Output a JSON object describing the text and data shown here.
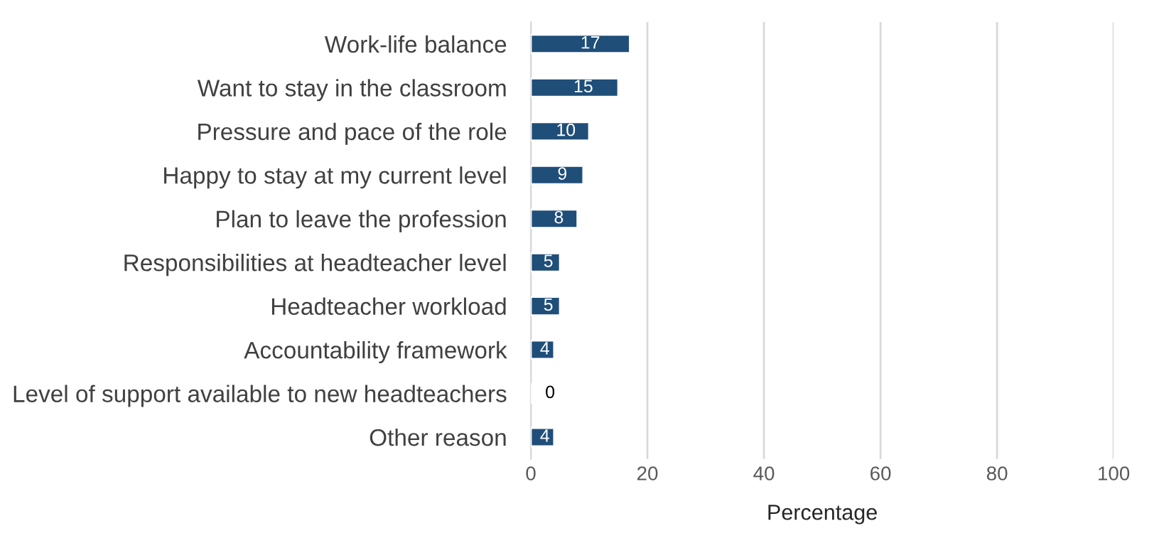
{
  "chart_data": {
    "type": "bar",
    "orientation": "horizontal",
    "xlabel": "Percentage",
    "categories": [
      "Work-life balance",
      "Want to stay in the classroom",
      "Pressure and pace of the role",
      "Happy to stay at my current level",
      "Plan to leave the profession",
      "Responsibilities at headteacher level",
      "Headteacher workload",
      "Accountability framework",
      "Level of support available to new headteachers",
      "Other reason"
    ],
    "values": [
      17,
      15,
      10,
      9,
      8,
      5,
      5,
      4,
      0.3,
      4
    ],
    "value_labels": [
      "17",
      "15",
      "10",
      "9",
      "8",
      "5",
      "5",
      "4",
      "0",
      "4"
    ],
    "color": "#1f4e79",
    "xlim": [
      0,
      100
    ],
    "xticks": [
      0,
      20,
      40,
      60,
      80,
      100
    ],
    "grid": "x",
    "legend": false
  }
}
